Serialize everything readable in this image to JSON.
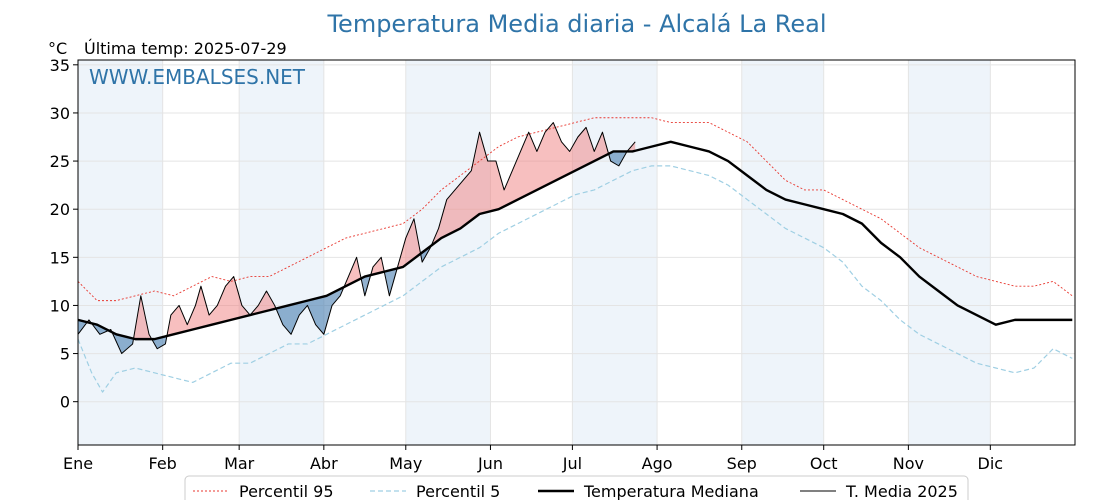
{
  "title": "Temperatura Media diaria - Alcalá La Real",
  "unit_label": "°C",
  "last_temp_label": "Última temp: 2025-07-29",
  "watermark": "WWW.EMBALSES.NET",
  "colors": {
    "title": "#2f74a8",
    "p95": "#e8372f",
    "p5": "#9fcfe3",
    "median": "#000000",
    "current": "#000000",
    "above_fill": "#f08080",
    "below_fill": "#4a7fb0",
    "shade": "#eef4fa"
  },
  "legend": [
    {
      "key": "p95",
      "label": "Percentil 95"
    },
    {
      "key": "p5",
      "label": "Percentil 5"
    },
    {
      "key": "median",
      "label": "Temperatura Mediana"
    },
    {
      "key": "current",
      "label": "T. Media 2025"
    }
  ],
  "chart_data": {
    "type": "line",
    "title": "Temperatura Media diaria - Alcalá La Real",
    "ylabel": "°C",
    "xlabel": "",
    "ylim": [
      -4.5,
      35.5
    ],
    "xlim": [
      1,
      366
    ],
    "grid": true,
    "legend_position": "bottom",
    "y_ticks": [
      0,
      5,
      10,
      15,
      20,
      25,
      30,
      35
    ],
    "x_ticks": [
      {
        "day": 1,
        "label": "Ene"
      },
      {
        "day": 32,
        "label": "Feb"
      },
      {
        "day": 60,
        "label": "Mar"
      },
      {
        "day": 91,
        "label": "Abr"
      },
      {
        "day": 121,
        "label": "May"
      },
      {
        "day": 152,
        "label": "Jun"
      },
      {
        "day": 182,
        "label": "Jul"
      },
      {
        "day": 213,
        "label": "Ago"
      },
      {
        "day": 244,
        "label": "Sep"
      },
      {
        "day": 274,
        "label": "Oct"
      },
      {
        "day": 305,
        "label": "Nov"
      },
      {
        "day": 335,
        "label": "Dic"
      }
    ],
    "x_unit": "day of year",
    "series": [
      {
        "key": "p95",
        "name": "Percentil 95",
        "style": "dotted",
        "points": [
          [
            1,
            12.5
          ],
          [
            8,
            10.5
          ],
          [
            15,
            10.5
          ],
          [
            22,
            11
          ],
          [
            29,
            11.5
          ],
          [
            36,
            11
          ],
          [
            43,
            12
          ],
          [
            50,
            13
          ],
          [
            57,
            12.5
          ],
          [
            64,
            13
          ],
          [
            71,
            13
          ],
          [
            78,
            14
          ],
          [
            85,
            15
          ],
          [
            92,
            16
          ],
          [
            99,
            17
          ],
          [
            106,
            17.5
          ],
          [
            113,
            18
          ],
          [
            120,
            18.5
          ],
          [
            127,
            20
          ],
          [
            134,
            22
          ],
          [
            141,
            23.5
          ],
          [
            148,
            25
          ],
          [
            155,
            26.5
          ],
          [
            162,
            27.5
          ],
          [
            169,
            28
          ],
          [
            176,
            28.5
          ],
          [
            183,
            29
          ],
          [
            190,
            29.5
          ],
          [
            197,
            29.5
          ],
          [
            204,
            29.5
          ],
          [
            211,
            29.5
          ],
          [
            218,
            29
          ],
          [
            225,
            29
          ],
          [
            232,
            29
          ],
          [
            239,
            28
          ],
          [
            246,
            27
          ],
          [
            253,
            25
          ],
          [
            260,
            23
          ],
          [
            267,
            22
          ],
          [
            274,
            22
          ],
          [
            281,
            21
          ],
          [
            288,
            20
          ],
          [
            295,
            19
          ],
          [
            302,
            17.5
          ],
          [
            309,
            16
          ],
          [
            316,
            15
          ],
          [
            323,
            14
          ],
          [
            330,
            13
          ],
          [
            337,
            12.5
          ],
          [
            344,
            12
          ],
          [
            351,
            12
          ],
          [
            358,
            12.5
          ],
          [
            365,
            11
          ]
        ]
      },
      {
        "key": "p5",
        "name": "Percentil 5",
        "style": "dashed",
        "points": [
          [
            1,
            6.5
          ],
          [
            6,
            3
          ],
          [
            10,
            1
          ],
          [
            15,
            3
          ],
          [
            22,
            3.5
          ],
          [
            29,
            3
          ],
          [
            36,
            2.5
          ],
          [
            43,
            2
          ],
          [
            50,
            3
          ],
          [
            57,
            4
          ],
          [
            64,
            4
          ],
          [
            71,
            5
          ],
          [
            78,
            6
          ],
          [
            85,
            6
          ],
          [
            92,
            7
          ],
          [
            99,
            8
          ],
          [
            106,
            9
          ],
          [
            113,
            10
          ],
          [
            120,
            11
          ],
          [
            127,
            12.5
          ],
          [
            134,
            14
          ],
          [
            141,
            15
          ],
          [
            148,
            16
          ],
          [
            155,
            17.5
          ],
          [
            162,
            18.5
          ],
          [
            169,
            19.5
          ],
          [
            176,
            20.5
          ],
          [
            183,
            21.5
          ],
          [
            190,
            22
          ],
          [
            197,
            23
          ],
          [
            204,
            24
          ],
          [
            211,
            24.5
          ],
          [
            218,
            24.5
          ],
          [
            225,
            24
          ],
          [
            232,
            23.5
          ],
          [
            239,
            22.5
          ],
          [
            246,
            21
          ],
          [
            253,
            19.5
          ],
          [
            260,
            18
          ],
          [
            267,
            17
          ],
          [
            274,
            16
          ],
          [
            281,
            14.5
          ],
          [
            288,
            12
          ],
          [
            295,
            10.5
          ],
          [
            302,
            8.5
          ],
          [
            309,
            7
          ],
          [
            316,
            6
          ],
          [
            323,
            5
          ],
          [
            330,
            4
          ],
          [
            337,
            3.5
          ],
          [
            344,
            3
          ],
          [
            351,
            3.5
          ],
          [
            358,
            5.5
          ],
          [
            365,
            4.5
          ]
        ]
      },
      {
        "key": "median",
        "name": "Temperatura Mediana",
        "style": "solid-thick",
        "points": [
          [
            1,
            8.5
          ],
          [
            8,
            8
          ],
          [
            15,
            7
          ],
          [
            22,
            6.5
          ],
          [
            29,
            6.5
          ],
          [
            36,
            7
          ],
          [
            43,
            7.5
          ],
          [
            50,
            8
          ],
          [
            57,
            8.5
          ],
          [
            64,
            9
          ],
          [
            71,
            9.5
          ],
          [
            78,
            10
          ],
          [
            85,
            10.5
          ],
          [
            92,
            11
          ],
          [
            99,
            12
          ],
          [
            106,
            13
          ],
          [
            113,
            13.5
          ],
          [
            120,
            14
          ],
          [
            127,
            15.5
          ],
          [
            134,
            17
          ],
          [
            141,
            18
          ],
          [
            148,
            19.5
          ],
          [
            155,
            20
          ],
          [
            162,
            21
          ],
          [
            169,
            22
          ],
          [
            176,
            23
          ],
          [
            183,
            24
          ],
          [
            190,
            25
          ],
          [
            197,
            26
          ],
          [
            204,
            26
          ],
          [
            211,
            26.5
          ],
          [
            218,
            27
          ],
          [
            225,
            26.5
          ],
          [
            232,
            26
          ],
          [
            239,
            25
          ],
          [
            246,
            23.5
          ],
          [
            253,
            22
          ],
          [
            260,
            21
          ],
          [
            267,
            20.5
          ],
          [
            274,
            20
          ],
          [
            281,
            19.5
          ],
          [
            288,
            18.5
          ],
          [
            295,
            16.5
          ],
          [
            302,
            15
          ],
          [
            309,
            13
          ],
          [
            316,
            11.5
          ],
          [
            323,
            10
          ],
          [
            330,
            9
          ],
          [
            337,
            8
          ],
          [
            344,
            8.5
          ],
          [
            351,
            8.5
          ],
          [
            358,
            8.5
          ],
          [
            365,
            8.5
          ]
        ]
      },
      {
        "key": "current",
        "name": "T. Media 2025",
        "style": "solid-thin",
        "points": [
          [
            1,
            7
          ],
          [
            5,
            8.5
          ],
          [
            9,
            7
          ],
          [
            13,
            7.5
          ],
          [
            17,
            5
          ],
          [
            21,
            6
          ],
          [
            24,
            11
          ],
          [
            27,
            7
          ],
          [
            30,
            5.5
          ],
          [
            33,
            6
          ],
          [
            35,
            9
          ],
          [
            38,
            10
          ],
          [
            41,
            8
          ],
          [
            44,
            10
          ],
          [
            46,
            12
          ],
          [
            49,
            9
          ],
          [
            52,
            10
          ],
          [
            55,
            12
          ],
          [
            58,
            13
          ],
          [
            61,
            10
          ],
          [
            64,
            9
          ],
          [
            67,
            10
          ],
          [
            70,
            11.5
          ],
          [
            73,
            10
          ],
          [
            76,
            8
          ],
          [
            79,
            7
          ],
          [
            82,
            9
          ],
          [
            85,
            10
          ],
          [
            88,
            8
          ],
          [
            91,
            7
          ],
          [
            94,
            10
          ],
          [
            97,
            11
          ],
          [
            100,
            13
          ],
          [
            103,
            15
          ],
          [
            106,
            11
          ],
          [
            109,
            14
          ],
          [
            112,
            15
          ],
          [
            115,
            11
          ],
          [
            118,
            14
          ],
          [
            121,
            17
          ],
          [
            124,
            19
          ],
          [
            127,
            14.5
          ],
          [
            130,
            16
          ],
          [
            133,
            18
          ],
          [
            136,
            21
          ],
          [
            139,
            22
          ],
          [
            142,
            23
          ],
          [
            145,
            24
          ],
          [
            148,
            28
          ],
          [
            151,
            25
          ],
          [
            154,
            25
          ],
          [
            157,
            22
          ],
          [
            160,
            24
          ],
          [
            163,
            26
          ],
          [
            166,
            28
          ],
          [
            169,
            26
          ],
          [
            172,
            28
          ],
          [
            175,
            29
          ],
          [
            178,
            27
          ],
          [
            181,
            26
          ],
          [
            184,
            27.5
          ],
          [
            187,
            28.5
          ],
          [
            190,
            26
          ],
          [
            193,
            28
          ],
          [
            196,
            25
          ],
          [
            199,
            24.5
          ],
          [
            202,
            26
          ],
          [
            205,
            27
          ]
        ]
      }
    ]
  }
}
